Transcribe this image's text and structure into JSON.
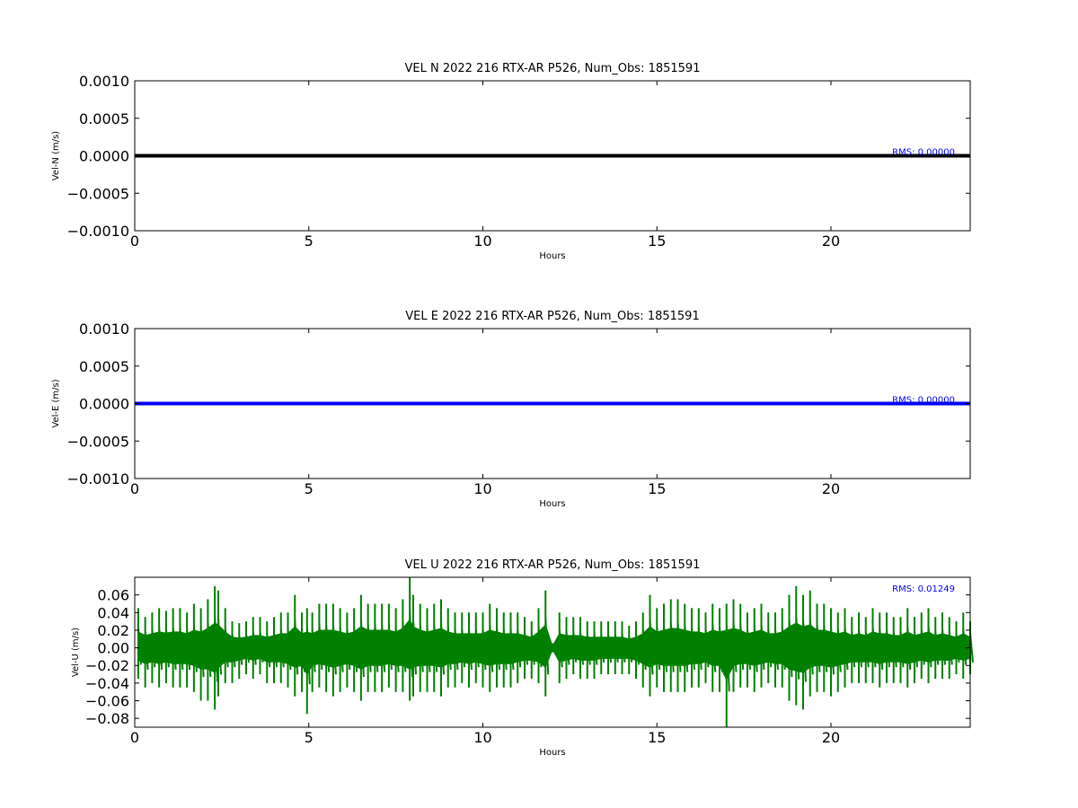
{
  "chart_data": [
    {
      "type": "line",
      "title": "VEL N 2022 216 RTX-AR  P526, Num_Obs: 1851591",
      "xlabel": "Hours",
      "ylabel": "Vel-N (m/s)",
      "xlim": [
        0,
        24
      ],
      "ylim": [
        -0.001,
        0.001
      ],
      "xticks": [
        "0",
        "5",
        "10",
        "15",
        "20"
      ],
      "yticks": [
        "0.0010",
        "0.0005",
        "0.0000",
        "−0.0005",
        "−0.0010"
      ],
      "rms_label": "RMS:  0.00000",
      "series": [
        {
          "color": "#000000",
          "x": [
            0,
            24
          ],
          "y": [
            0.0,
            0.0
          ]
        }
      ]
    },
    {
      "type": "line",
      "title": "VEL E 2022 216 RTX-AR  P526, Num_Obs: 1851591",
      "xlabel": "Hours",
      "ylabel": "Vel-E (m/s)",
      "xlim": [
        0,
        24
      ],
      "ylim": [
        -0.001,
        0.001
      ],
      "xticks": [
        "0",
        "5",
        "10",
        "15",
        "20"
      ],
      "yticks": [
        "0.0010",
        "0.0005",
        "0.0000",
        "−0.0005",
        "−0.0010"
      ],
      "rms_label": "RMS:  0.00000",
      "series": [
        {
          "color": "#0000ff",
          "x": [
            0,
            24
          ],
          "y": [
            0.0,
            0.0
          ]
        }
      ]
    },
    {
      "type": "line",
      "title": "VEL U 2022 216 RTX-AR  P526, Num_Obs: 1851591",
      "xlabel": "Hours",
      "ylabel": "Vel-U (m/s)",
      "xlim": [
        0,
        24
      ],
      "ylim": [
        -0.09,
        0.08
      ],
      "xticks": [
        "0",
        "5",
        "10",
        "15",
        "20"
      ],
      "yticks": [
        "0.06",
        "0.04",
        "0.02",
        "0.00",
        "−0.02",
        "−0.04",
        "−0.06",
        "−0.08"
      ],
      "rms_label": "RMS:  0.01249",
      "series": [
        {
          "color": "#008000",
          "x": [
            0.1,
            0.3,
            0.5,
            0.7,
            0.9,
            1.1,
            1.3,
            1.5,
            1.7,
            1.9,
            2.1,
            2.3,
            2.4,
            2.6,
            2.8,
            3.0,
            3.2,
            3.4,
            3.6,
            3.8,
            4.0,
            4.2,
            4.4,
            4.6,
            4.8,
            4.95,
            5.1,
            5.3,
            5.5,
            5.7,
            5.9,
            6.1,
            6.3,
            6.5,
            6.7,
            6.9,
            7.1,
            7.3,
            7.5,
            7.7,
            7.9,
            8.0,
            8.2,
            8.4,
            8.6,
            8.8,
            9.0,
            9.2,
            9.4,
            9.6,
            9.8,
            10.0,
            10.2,
            10.4,
            10.6,
            10.8,
            11.0,
            11.2,
            11.4,
            11.6,
            11.8,
            12.0,
            12.2,
            12.4,
            12.6,
            12.8,
            13.0,
            13.2,
            13.4,
            13.6,
            13.8,
            14.0,
            14.2,
            14.4,
            14.6,
            14.8,
            15.0,
            15.2,
            15.4,
            15.6,
            15.8,
            16.0,
            16.2,
            16.4,
            16.6,
            16.8,
            17.0,
            17.2,
            17.4,
            17.6,
            17.8,
            18.0,
            18.2,
            18.4,
            18.6,
            18.8,
            19.0,
            19.2,
            19.4,
            19.6,
            19.8,
            20.0,
            20.2,
            20.4,
            20.6,
            20.8,
            21.0,
            21.2,
            21.4,
            21.6,
            21.8,
            22.0,
            22.2,
            22.4,
            22.6,
            22.8,
            23.0,
            23.2,
            23.4,
            23.6,
            23.8,
            24.0
          ],
          "ymax": [
            0.045,
            0.035,
            0.04,
            0.045,
            0.042,
            0.045,
            0.045,
            0.04,
            0.05,
            0.045,
            0.055,
            0.07,
            0.065,
            0.045,
            0.03,
            0.028,
            0.03,
            0.035,
            0.035,
            0.03,
            0.035,
            0.04,
            0.04,
            0.06,
            0.04,
            0.045,
            0.04,
            0.05,
            0.05,
            0.05,
            0.045,
            0.04,
            0.045,
            0.06,
            0.05,
            0.05,
            0.05,
            0.05,
            0.045,
            0.055,
            0.08,
            0.06,
            0.05,
            0.045,
            0.05,
            0.055,
            0.045,
            0.04,
            0.04,
            0.04,
            0.04,
            0.04,
            0.05,
            0.045,
            0.04,
            0.04,
            0.04,
            0.035,
            0.03,
            0.045,
            0.065,
            0.005,
            0.04,
            0.035,
            0.035,
            0.035,
            0.03,
            0.03,
            0.03,
            0.03,
            0.03,
            0.03,
            0.025,
            0.03,
            0.04,
            0.06,
            0.045,
            0.05,
            0.055,
            0.055,
            0.05,
            0.045,
            0.045,
            0.04,
            0.05,
            0.045,
            0.05,
            0.055,
            0.05,
            0.04,
            0.045,
            0.05,
            0.04,
            0.04,
            0.045,
            0.06,
            0.07,
            0.06,
            0.065,
            0.05,
            0.05,
            0.045,
            0.04,
            0.045,
            0.035,
            0.04,
            0.035,
            0.045,
            0.04,
            0.04,
            0.035,
            0.035,
            0.045,
            0.035,
            0.04,
            0.045,
            0.035,
            0.04,
            0.035,
            0.03,
            0.04,
            0.03
          ],
          "ymin": [
            -0.035,
            -0.045,
            -0.04,
            -0.045,
            -0.04,
            -0.045,
            -0.045,
            -0.045,
            -0.05,
            -0.06,
            -0.06,
            -0.07,
            -0.055,
            -0.04,
            -0.04,
            -0.035,
            -0.03,
            -0.035,
            -0.03,
            -0.04,
            -0.04,
            -0.04,
            -0.045,
            -0.055,
            -0.05,
            -0.075,
            -0.05,
            -0.045,
            -0.05,
            -0.055,
            -0.05,
            -0.045,
            -0.05,
            -0.06,
            -0.05,
            -0.05,
            -0.05,
            -0.045,
            -0.05,
            -0.05,
            -0.06,
            -0.055,
            -0.05,
            -0.05,
            -0.05,
            -0.055,
            -0.045,
            -0.045,
            -0.04,
            -0.045,
            -0.04,
            -0.045,
            -0.05,
            -0.045,
            -0.045,
            -0.045,
            -0.04,
            -0.035,
            -0.035,
            -0.04,
            -0.055,
            -0.005,
            -0.04,
            -0.035,
            -0.03,
            -0.035,
            -0.035,
            -0.035,
            -0.03,
            -0.03,
            -0.03,
            -0.03,
            -0.03,
            -0.035,
            -0.045,
            -0.055,
            -0.045,
            -0.05,
            -0.05,
            -0.05,
            -0.05,
            -0.045,
            -0.045,
            -0.04,
            -0.05,
            -0.05,
            -0.09,
            -0.05,
            -0.045,
            -0.045,
            -0.05,
            -0.045,
            -0.04,
            -0.045,
            -0.045,
            -0.06,
            -0.065,
            -0.07,
            -0.055,
            -0.05,
            -0.05,
            -0.055,
            -0.05,
            -0.045,
            -0.04,
            -0.04,
            -0.04,
            -0.04,
            -0.045,
            -0.04,
            -0.04,
            -0.04,
            -0.045,
            -0.04,
            -0.035,
            -0.04,
            -0.035,
            -0.035,
            -0.035,
            -0.03,
            -0.035,
            -0.03
          ]
        }
      ]
    }
  ]
}
